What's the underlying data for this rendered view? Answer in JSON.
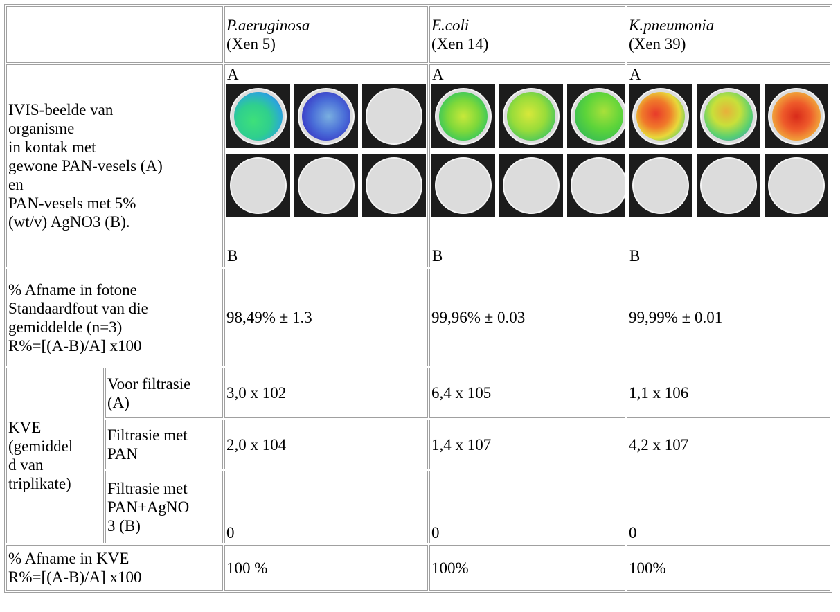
{
  "header": {
    "organisms": [
      {
        "name": "P.aeruginosa",
        "strain": "(Xen 5)"
      },
      {
        "name": "E.coli",
        "strain": "(Xen 14)"
      },
      {
        "name": "K.pneumonia",
        "strain": "(Xen 39)"
      }
    ]
  },
  "ivis": {
    "label_lines": [
      "IVIS-beelde van",
      "organisme",
      "in kontak met",
      "gewone PAN-vesels (A)",
      "en",
      "PAN-vesels met 5%",
      "(wt/v) AgNO3 (B)."
    ],
    "label_a": "A",
    "label_b": "B"
  },
  "photons": {
    "label_lines": [
      "% Afname in fotone",
      "Standaardfout van die",
      "gemiddelde (n=3)",
      "R%=[(A-B)/A] x100"
    ],
    "values": [
      "98,49% ± 1.3",
      "99,96% ± 0.03",
      "99,99% ± 0.01"
    ]
  },
  "kve": {
    "label_lines": [
      "KVE",
      "(gemiddel",
      "d van",
      "triplikate)"
    ],
    "rows": [
      {
        "sub_lines": [
          "Voor filtrasie",
          "(A)"
        ],
        "values": [
          "3,0 x 102",
          "6,4 x 105",
          "1,1 x 106"
        ]
      },
      {
        "sub_lines": [
          "Filtrasie met",
          "PAN"
        ],
        "values": [
          "2,0 x 104",
          "1,4 x 107",
          "4,2 x 107"
        ]
      },
      {
        "sub_lines": [
          "Filtrasie met",
          "PAN+AgNO",
          "3 (B)"
        ],
        "values": [
          "0",
          "0",
          "0"
        ]
      }
    ]
  },
  "reduction": {
    "label_lines": [
      "% Afname in KVE",
      "R%=[(A-B)/A] x100"
    ],
    "values": [
      "100 %",
      "100%",
      "100%"
    ]
  }
}
